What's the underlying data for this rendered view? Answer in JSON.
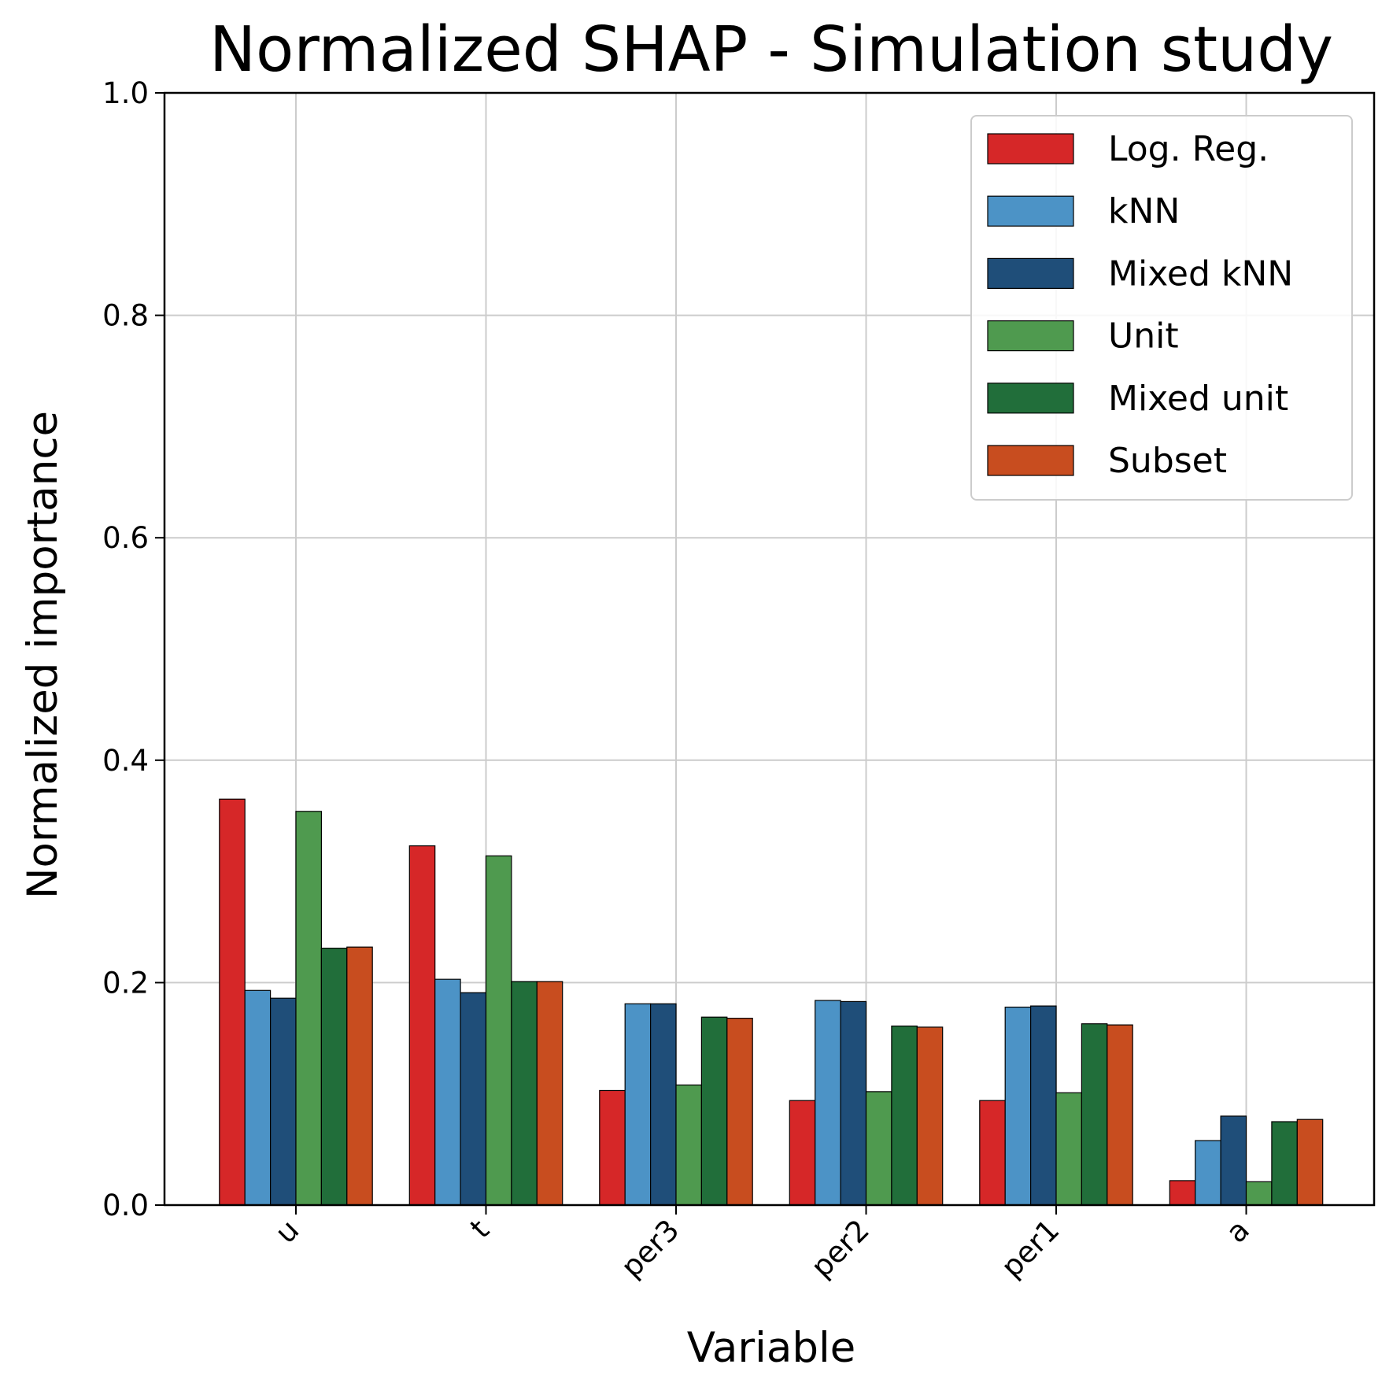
{
  "chart_data": {
    "type": "bar",
    "title": "Normalized SHAP - Simulation study",
    "xlabel": "Variable",
    "ylabel": "Normalized importance",
    "ylim": [
      0,
      1.0
    ],
    "yticks": [
      "0.0",
      "0.2",
      "0.4",
      "0.6",
      "0.8",
      "1.0"
    ],
    "grid": true,
    "legend_position": "top-right",
    "categories": [
      "u",
      "t",
      "per3",
      "per2",
      "per1",
      "a"
    ],
    "series": [
      {
        "name": "Log. Reg.",
        "color": "#d62728",
        "values": [
          0.365,
          0.323,
          0.103,
          0.094,
          0.094,
          0.022
        ]
      },
      {
        "name": "kNN",
        "color": "#4c93c6",
        "values": [
          0.193,
          0.203,
          0.181,
          0.184,
          0.178,
          0.058
        ]
      },
      {
        "name": "Mixed kNN",
        "color": "#1f4e79",
        "values": [
          0.186,
          0.191,
          0.181,
          0.183,
          0.179,
          0.08
        ]
      },
      {
        "name": "Unit",
        "color": "#4f9a4f",
        "values": [
          0.354,
          0.314,
          0.108,
          0.102,
          0.101,
          0.021
        ]
      },
      {
        "name": "Mixed unit",
        "color": "#216e3a",
        "values": [
          0.231,
          0.201,
          0.169,
          0.161,
          0.163,
          0.075
        ]
      },
      {
        "name": "Subset",
        "color": "#c84d1f",
        "values": [
          0.232,
          0.201,
          0.168,
          0.16,
          0.162,
          0.077
        ]
      }
    ]
  }
}
